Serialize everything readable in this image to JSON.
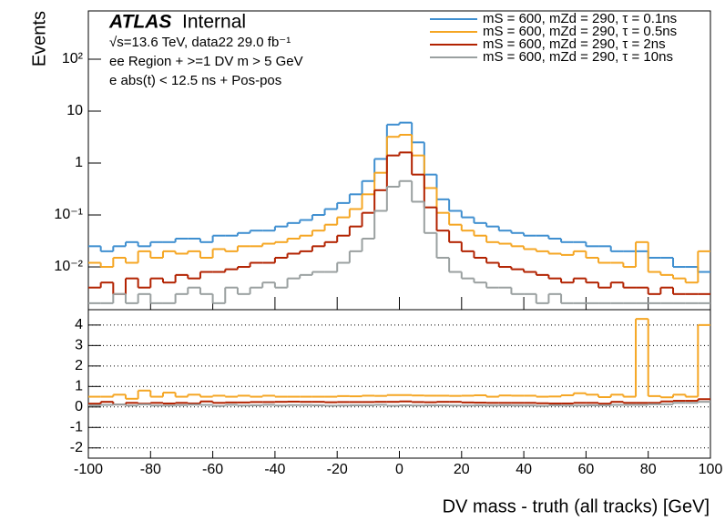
{
  "chart_data": [
    {
      "type": "histogram",
      "experiment": "ATLAS",
      "status": "Internal",
      "annotations": [
        "√s=13.6 TeV, data22 29.0 fb⁻¹",
        "ee Region + >=1 DV m > 5 GeV",
        "e abs(t) < 12.5 ns + Pos-pos"
      ],
      "ylabel": "Events",
      "log_y": true,
      "legend": "upper right",
      "bins": [
        -100,
        -96,
        -92,
        -88,
        -84,
        -80,
        -76,
        -72,
        -68,
        -64,
        -60,
        -56,
        -52,
        -48,
        -44,
        -40,
        -36,
        -32,
        -28,
        -24,
        -20,
        -16,
        -12,
        -8,
        -4,
        0,
        4,
        8,
        12,
        16,
        20,
        24,
        28,
        32,
        36,
        40,
        44,
        48,
        52,
        56,
        60,
        64,
        68,
        72,
        76,
        80,
        84,
        88,
        92,
        96,
        100
      ],
      "ylim": [
        0.0015,
        850
      ],
      "yticks": [
        {
          "value": 0.01,
          "label": "10⁻²"
        },
        {
          "value": 0.1,
          "label": "10⁻¹"
        },
        1,
        10,
        {
          "value": 100,
          "label": "10²"
        }
      ],
      "series": [
        {
          "name": "mS = 600, mZd = 290, τ = 0.1ns",
          "color": "#3f8fd0",
          "values": [
            0.025,
            0.02,
            0.025,
            0.03,
            0.025,
            0.03,
            0.03,
            0.035,
            0.035,
            0.03,
            0.04,
            0.04,
            0.045,
            0.05,
            0.05,
            0.06,
            0.07,
            0.08,
            0.1,
            0.13,
            0.17,
            0.25,
            0.45,
            1.2,
            5.5,
            6,
            2.5,
            0.6,
            0.2,
            0.12,
            0.09,
            0.07,
            0.06,
            0.05,
            0.045,
            0.04,
            0.04,
            0.035,
            0.03,
            0.03,
            0.025,
            0.025,
            0.02,
            0.02,
            0.02,
            0.015,
            0.015,
            0.01,
            0.01,
            0.008
          ]
        },
        {
          "name": "mS = 600, mZd = 290, τ = 0.5ns",
          "color": "#f5a623",
          "values": [
            0.012,
            0.01,
            0.015,
            0.012,
            0.02,
            0.015,
            0.02,
            0.018,
            0.02,
            0.015,
            0.022,
            0.02,
            0.025,
            0.025,
            0.028,
            0.03,
            0.035,
            0.04,
            0.05,
            0.065,
            0.09,
            0.13,
            0.25,
            0.65,
            3.2,
            3.5,
            1.4,
            0.33,
            0.11,
            0.065,
            0.05,
            0.04,
            0.03,
            0.028,
            0.025,
            0.022,
            0.02,
            0.018,
            0.017,
            0.02,
            0.015,
            0.012,
            0.012,
            0.01,
            0.03,
            0.008,
            0.007,
            0.006,
            0.005,
            0.02
          ]
        },
        {
          "name": "mS = 600, mZd = 290, τ = 2ns",
          "color": "#b22200",
          "values": [
            0.004,
            0.005,
            0.003,
            0.006,
            0.004,
            0.006,
            0.005,
            0.007,
            0.006,
            0.008,
            0.008,
            0.009,
            0.01,
            0.012,
            0.012,
            0.015,
            0.018,
            0.02,
            0.025,
            0.03,
            0.04,
            0.06,
            0.11,
            0.3,
            1.4,
            1.6,
            0.6,
            0.14,
            0.05,
            0.03,
            0.02,
            0.015,
            0.012,
            0.01,
            0.009,
            0.008,
            0.007,
            0.006,
            0.005,
            0.006,
            0.005,
            0.004,
            0.005,
            0.004,
            0.004,
            0.003,
            0.004,
            0.003,
            0.003,
            0.003
          ]
        },
        {
          "name": "mS = 600, mZd = 290, τ = 10ns",
          "color": "#9aa0a0",
          "values": [
            0.002,
            0.002,
            0.003,
            0.002,
            0.003,
            0.002,
            0.002,
            0.003,
            0.004,
            0.003,
            0.002,
            0.004,
            0.003,
            0.004,
            0.005,
            0.004,
            0.006,
            0.007,
            0.008,
            0.008,
            0.012,
            0.02,
            0.035,
            0.12,
            0.35,
            0.45,
            0.18,
            0.045,
            0.015,
            0.008,
            0.006,
            0.005,
            0.004,
            0.004,
            0.003,
            0.003,
            0.002,
            0.003,
            0.002,
            0.002,
            0.002,
            0.002,
            0.002,
            0.002,
            0.002,
            0.002,
            0.002,
            0.002,
            0.002,
            0.002
          ]
        }
      ]
    },
    {
      "type": "histogram",
      "xlabel": "DV mass - truth (all tracks) [GeV]",
      "grid": true,
      "bins": [
        -100,
        -96,
        -92,
        -88,
        -84,
        -80,
        -76,
        -72,
        -68,
        -64,
        -60,
        -56,
        -52,
        -48,
        -44,
        -40,
        -36,
        -32,
        -28,
        -24,
        -20,
        -16,
        -12,
        -8,
        -4,
        0,
        4,
        8,
        12,
        16,
        20,
        24,
        28,
        32,
        36,
        40,
        44,
        48,
        52,
        56,
        60,
        64,
        68,
        72,
        76,
        80,
        84,
        88,
        92,
        96,
        100
      ],
      "xlim": [
        -100,
        100
      ],
      "xticks": [
        -100,
        -80,
        -60,
        -40,
        -20,
        0,
        20,
        40,
        60,
        80,
        100
      ],
      "ylim": [
        -2.5,
        4.75
      ],
      "yticks": [
        -2,
        -1,
        0,
        1,
        2,
        3,
        4
      ],
      "series": [
        {
          "color": "#f5a623",
          "values": [
            0.5,
            0.5,
            0.6,
            0.4,
            0.8,
            0.5,
            0.7,
            0.5,
            0.6,
            0.5,
            0.55,
            0.5,
            0.55,
            0.5,
            0.55,
            0.5,
            0.5,
            0.5,
            0.5,
            0.5,
            0.53,
            0.52,
            0.55,
            0.54,
            0.58,
            0.58,
            0.56,
            0.55,
            0.55,
            0.54,
            0.55,
            0.57,
            0.5,
            0.56,
            0.55,
            0.55,
            0.5,
            0.51,
            0.57,
            0.67,
            0.6,
            0.48,
            0.6,
            0.5,
            4.3,
            0.53,
            0.47,
            0.6,
            0.5,
            4.0
          ]
        },
        {
          "color": "#b22200",
          "values": [
            0.16,
            0.25,
            0.12,
            0.2,
            0.16,
            0.2,
            0.17,
            0.2,
            0.17,
            0.27,
            0.2,
            0.22,
            0.22,
            0.24,
            0.24,
            0.25,
            0.26,
            0.25,
            0.25,
            0.23,
            0.24,
            0.24,
            0.24,
            0.25,
            0.25,
            0.27,
            0.24,
            0.23,
            0.25,
            0.25,
            0.22,
            0.21,
            0.2,
            0.2,
            0.2,
            0.2,
            0.18,
            0.17,
            0.17,
            0.2,
            0.2,
            0.16,
            0.25,
            0.2,
            0.2,
            0.2,
            0.27,
            0.3,
            0.3,
            0.38
          ]
        },
        {
          "color": "#9aa0a0",
          "values": [
            0.08,
            0.1,
            0.12,
            0.07,
            0.12,
            0.07,
            0.07,
            0.09,
            0.11,
            0.1,
            0.05,
            0.1,
            0.07,
            0.08,
            0.1,
            0.07,
            0.09,
            0.09,
            0.08,
            0.06,
            0.07,
            0.08,
            0.08,
            0.1,
            0.06,
            0.08,
            0.07,
            0.08,
            0.08,
            0.07,
            0.07,
            0.08,
            0.07,
            0.08,
            0.07,
            0.07,
            0.05,
            0.08,
            0.07,
            0.07,
            0.08,
            0.08,
            0.1,
            0.1,
            0.1,
            0.13,
            0.13,
            0.2,
            0.2,
            0.25
          ]
        }
      ]
    }
  ]
}
